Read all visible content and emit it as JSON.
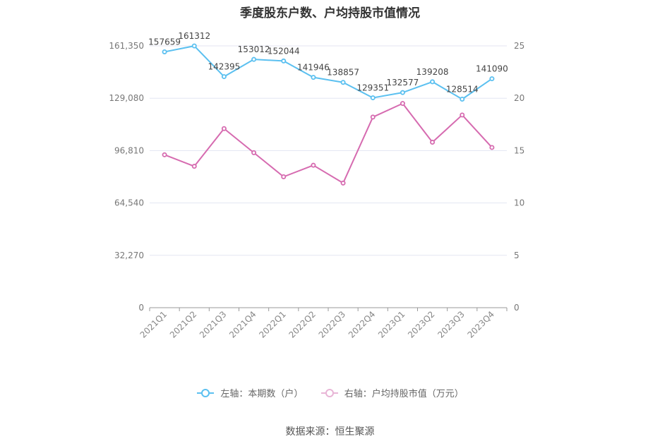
{
  "chart_data": {
    "type": "line",
    "title": "季度股东户数、户均持股市值情况",
    "categories": [
      "2021Q1",
      "2021Q2",
      "2021Q3",
      "2021Q4",
      "2022Q1",
      "2022Q2",
      "2022Q3",
      "2022Q4",
      "2023Q1",
      "2023Q2",
      "2023Q3",
      "2023Q4"
    ],
    "left_axis": {
      "ticks": [
        "0",
        "32,270",
        "64,540",
        "96,810",
        "129,080",
        "161,350"
      ],
      "ylim": [
        0,
        161350
      ]
    },
    "right_axis": {
      "ticks": [
        "0",
        "5",
        "10",
        "15",
        "20",
        "25"
      ],
      "ylim": [
        0,
        25
      ]
    },
    "series": [
      {
        "name": "左轴：本期数（户）",
        "axis": "left",
        "color": "#5bc0f0",
        "values": [
          157659,
          161312,
          142395,
          153012,
          152044,
          141946,
          138857,
          129351,
          132577,
          139208,
          128514,
          141090
        ],
        "labels": [
          "157659",
          "161312",
          "142395",
          "153012",
          "152044",
          "141946",
          "138857",
          "129351",
          "132577",
          "139208",
          "128514",
          "141090"
        ]
      },
      {
        "name": "右轴：户均持股市值（万元）",
        "axis": "right",
        "color": "#d66bb0",
        "values": [
          14.6,
          13.5,
          17.1,
          14.8,
          12.5,
          13.6,
          11.9,
          18.2,
          19.5,
          15.8,
          18.4,
          15.3
        ]
      }
    ],
    "grid": true,
    "legend": "bottom"
  },
  "source": "数据来源：恒生聚源"
}
